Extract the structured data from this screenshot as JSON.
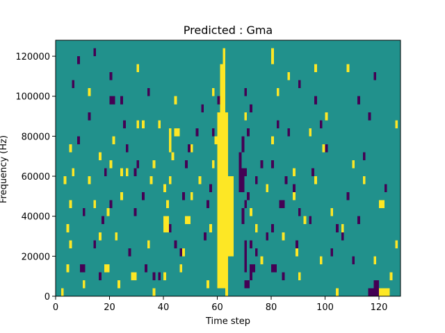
{
  "chart_data": {
    "type": "heatmap",
    "title": "Predicted : Gma",
    "xlabel": "Time step",
    "ylabel": "Frequency (Hz)",
    "xlim": [
      0,
      128
    ],
    "ylim": [
      0,
      128000
    ],
    "x_ticks": [
      0,
      20,
      40,
      60,
      80,
      100,
      120
    ],
    "y_ticks": [
      0,
      20000,
      40000,
      60000,
      80000,
      100000,
      120000
    ],
    "x_tick_labels": [
      "0",
      "20",
      "40",
      "60",
      "80",
      "100",
      "120"
    ],
    "y_tick_labels": [
      "0",
      "20000",
      "40000",
      "60000",
      "80000",
      "100000",
      "120000"
    ],
    "colormap": "viridis",
    "colors": {
      "background": "#21918c",
      "high": "#fde725",
      "low": "#440154"
    },
    "grid": false,
    "y_bin_size": 4000,
    "high_cells": [
      [
        60,
        4000,
        64,
        92000
      ],
      [
        61,
        92000,
        63,
        116000
      ],
      [
        62,
        116000,
        63,
        124000
      ],
      [
        64,
        20000,
        66,
        60000
      ],
      [
        2,
        0,
        3,
        4000
      ],
      [
        4,
        12000,
        5,
        16000
      ],
      [
        5,
        24000,
        6,
        28000
      ],
      [
        4,
        32000,
        5,
        36000
      ],
      [
        5,
        44000,
        6,
        48000
      ],
      [
        3,
        56000,
        4,
        60000
      ],
      [
        5,
        72000,
        6,
        76000
      ],
      [
        6,
        60000,
        7,
        64000
      ],
      [
        10,
        4000,
        11,
        8000
      ],
      [
        12,
        56000,
        13,
        60000
      ],
      [
        14,
        44000,
        15,
        48000
      ],
      [
        16,
        28000,
        17,
        32000
      ],
      [
        18,
        12000,
        20,
        16000
      ],
      [
        19,
        40000,
        20,
        44000
      ],
      [
        16,
        68000,
        17,
        72000
      ],
      [
        20,
        64000,
        21,
        68000
      ],
      [
        22,
        28000,
        23,
        32000
      ],
      [
        23,
        4000,
        24,
        8000
      ],
      [
        24,
        48000,
        25,
        52000
      ],
      [
        24,
        60000,
        25,
        64000
      ],
      [
        21,
        76000,
        22,
        80000
      ],
      [
        26,
        60000,
        27,
        64000
      ],
      [
        28,
        8000,
        30,
        12000
      ],
      [
        32,
        84000,
        33,
        88000
      ],
      [
        34,
        24000,
        35,
        28000
      ],
      [
        35,
        56000,
        36,
        60000
      ],
      [
        36,
        0,
        37,
        4000
      ],
      [
        36,
        64000,
        37,
        68000
      ],
      [
        40,
        8000,
        41,
        12000
      ],
      [
        40,
        32000,
        42,
        40000
      ],
      [
        41,
        44000,
        42,
        48000
      ],
      [
        40,
        52000,
        41,
        56000
      ],
      [
        42,
        56000,
        43,
        60000
      ],
      [
        43,
        68000,
        44,
        72000
      ],
      [
        42,
        72000,
        43,
        84000
      ],
      [
        44,
        80000,
        46,
        84000
      ],
      [
        46,
        12000,
        47,
        16000
      ],
      [
        47,
        20000,
        48,
        24000
      ],
      [
        48,
        36000,
        50,
        40000
      ],
      [
        50,
        48000,
        51,
        52000
      ],
      [
        50,
        72000,
        51,
        76000
      ],
      [
        53,
        56000,
        54,
        60000
      ],
      [
        56,
        4000,
        57,
        8000
      ],
      [
        57,
        32000,
        58,
        36000
      ],
      [
        58,
        64000,
        59,
        68000
      ],
      [
        59,
        76000,
        60,
        80000
      ],
      [
        58,
        100000,
        59,
        104000
      ],
      [
        62,
        104000,
        63,
        112000
      ],
      [
        63,
        0,
        64,
        4000
      ],
      [
        88,
        48000,
        89,
        52000
      ],
      [
        89,
        20000,
        90,
        24000
      ],
      [
        90,
        8000,
        91,
        12000
      ],
      [
        92,
        36000,
        93,
        40000
      ],
      [
        94,
        80000,
        95,
        84000
      ],
      [
        96,
        56000,
        97,
        60000
      ],
      [
        98,
        16000,
        99,
        20000
      ],
      [
        99,
        72000,
        100,
        76000
      ],
      [
        100,
        88000,
        101,
        92000
      ],
      [
        102,
        40000,
        103,
        44000
      ],
      [
        104,
        0,
        105,
        4000
      ],
      [
        106,
        32000,
        107,
        36000
      ],
      [
        110,
        64000,
        111,
        68000
      ],
      [
        114,
        56000,
        115,
        60000
      ],
      [
        118,
        16000,
        119,
        20000
      ],
      [
        120,
        44000,
        122,
        48000
      ],
      [
        120,
        0,
        124,
        4000
      ],
      [
        124,
        8000,
        125,
        12000
      ],
      [
        126,
        84000,
        127,
        88000
      ],
      [
        126,
        24000,
        127,
        28000
      ],
      [
        88,
        60000,
        89,
        64000
      ],
      [
        82,
        100000,
        83,
        104000
      ],
      [
        78,
        52000,
        79,
        56000
      ],
      [
        76,
        16000,
        77,
        20000
      ],
      [
        80,
        76000,
        81,
        80000
      ],
      [
        70,
        88000,
        71,
        92000
      ],
      [
        72,
        40000,
        73,
        44000
      ],
      [
        86,
        108000,
        87,
        112000
      ],
      [
        74,
        32000,
        75,
        36000
      ],
      [
        84,
        28000,
        85,
        32000
      ],
      [
        80,
        116000,
        81,
        124000
      ],
      [
        96,
        112000,
        97,
        116000
      ],
      [
        108,
        112000,
        109,
        116000
      ],
      [
        44,
        96000,
        45,
        100000
      ],
      [
        38,
        84000,
        39,
        88000
      ],
      [
        30,
        84000,
        31,
        88000
      ],
      [
        30,
        112000,
        31,
        116000
      ],
      [
        12,
        100000,
        13,
        104000
      ]
    ],
    "low_cells": [
      [
        70,
        4000,
        72,
        8000
      ],
      [
        70,
        12000,
        71,
        28000
      ],
      [
        69,
        36000,
        70,
        44000
      ],
      [
        70,
        44000,
        71,
        48000
      ],
      [
        68,
        52000,
        70,
        64000
      ],
      [
        68,
        64000,
        69,
        72000
      ],
      [
        69,
        72000,
        70,
        80000
      ],
      [
        71,
        80000,
        72,
        84000
      ],
      [
        72,
        8000,
        73,
        16000
      ],
      [
        73,
        12000,
        74,
        16000
      ],
      [
        74,
        20000,
        75,
        24000
      ],
      [
        72,
        24000,
        73,
        28000
      ],
      [
        71,
        48000,
        72,
        52000
      ],
      [
        70,
        60000,
        71,
        64000
      ],
      [
        70,
        100000,
        71,
        104000
      ],
      [
        72,
        92000,
        73,
        96000
      ],
      [
        36,
        8000,
        37,
        12000
      ],
      [
        38,
        8000,
        39,
        12000
      ],
      [
        42,
        32000,
        43,
        36000
      ],
      [
        44,
        24000,
        45,
        28000
      ],
      [
        46,
        20000,
        47,
        24000
      ],
      [
        47,
        48000,
        48,
        52000
      ],
      [
        48,
        64000,
        49,
        68000
      ],
      [
        49,
        72000,
        50,
        76000
      ],
      [
        52,
        80000,
        53,
        84000
      ],
      [
        54,
        92000,
        55,
        96000
      ],
      [
        55,
        28000,
        56,
        32000
      ],
      [
        56,
        44000,
        57,
        48000
      ],
      [
        57,
        52000,
        58,
        56000
      ],
      [
        58,
        80000,
        59,
        84000
      ],
      [
        60,
        96000,
        61,
        100000
      ],
      [
        80,
        12000,
        82,
        16000
      ],
      [
        80,
        32000,
        81,
        36000
      ],
      [
        80,
        64000,
        81,
        68000
      ],
      [
        83,
        44000,
        85,
        48000
      ],
      [
        84,
        8000,
        85,
        12000
      ],
      [
        85,
        56000,
        86,
        60000
      ],
      [
        88,
        52000,
        89,
        56000
      ],
      [
        89,
        24000,
        90,
        28000
      ],
      [
        90,
        40000,
        91,
        44000
      ],
      [
        94,
        36000,
        95,
        40000
      ],
      [
        95,
        60000,
        96,
        64000
      ],
      [
        98,
        84000,
        99,
        88000
      ],
      [
        100,
        72000,
        101,
        76000
      ],
      [
        106,
        28000,
        107,
        32000
      ],
      [
        108,
        48000,
        109,
        52000
      ],
      [
        112,
        36000,
        113,
        40000
      ],
      [
        114,
        68000,
        115,
        72000
      ],
      [
        116,
        0,
        120,
        4000
      ],
      [
        118,
        4000,
        120,
        8000
      ],
      [
        122,
        52000,
        123,
        56000
      ],
      [
        9,
        12000,
        11,
        16000
      ],
      [
        10,
        40000,
        11,
        44000
      ],
      [
        8,
        76000,
        9,
        80000
      ],
      [
        12,
        88000,
        13,
        92000
      ],
      [
        14,
        24000,
        15,
        28000
      ],
      [
        16,
        8000,
        17,
        12000
      ],
      [
        17,
        36000,
        18,
        40000
      ],
      [
        18,
        60000,
        19,
        64000
      ],
      [
        20,
        44000,
        21,
        48000
      ],
      [
        24,
        96000,
        25,
        100000
      ],
      [
        26,
        72000,
        27,
        76000
      ],
      [
        27,
        20000,
        28,
        24000
      ],
      [
        29,
        40000,
        30,
        44000
      ],
      [
        30,
        64000,
        31,
        68000
      ],
      [
        32,
        48000,
        33,
        52000
      ],
      [
        33,
        12000,
        34,
        16000
      ],
      [
        34,
        100000,
        35,
        104000
      ],
      [
        20,
        96000,
        22,
        100000
      ],
      [
        6,
        104000,
        7,
        108000
      ],
      [
        8,
        116000,
        9,
        120000
      ],
      [
        14,
        120000,
        15,
        124000
      ],
      [
        20,
        108000,
        21,
        112000
      ],
      [
        25,
        84000,
        26,
        88000
      ],
      [
        29,
        60000,
        30,
        64000
      ],
      [
        82,
        84000,
        83,
        88000
      ],
      [
        76,
        64000,
        77,
        68000
      ],
      [
        78,
        28000,
        79,
        32000
      ],
      [
        74,
        56000,
        75,
        60000
      ],
      [
        86,
        80000,
        87,
        84000
      ],
      [
        90,
        104000,
        91,
        108000
      ],
      [
        96,
        96000,
        97,
        100000
      ],
      [
        102,
        20000,
        103,
        24000
      ],
      [
        104,
        32000,
        105,
        36000
      ],
      [
        110,
        16000,
        111,
        20000
      ],
      [
        112,
        96000,
        113,
        100000
      ],
      [
        116,
        88000,
        117,
        92000
      ],
      [
        118,
        108000,
        119,
        112000
      ]
    ]
  }
}
